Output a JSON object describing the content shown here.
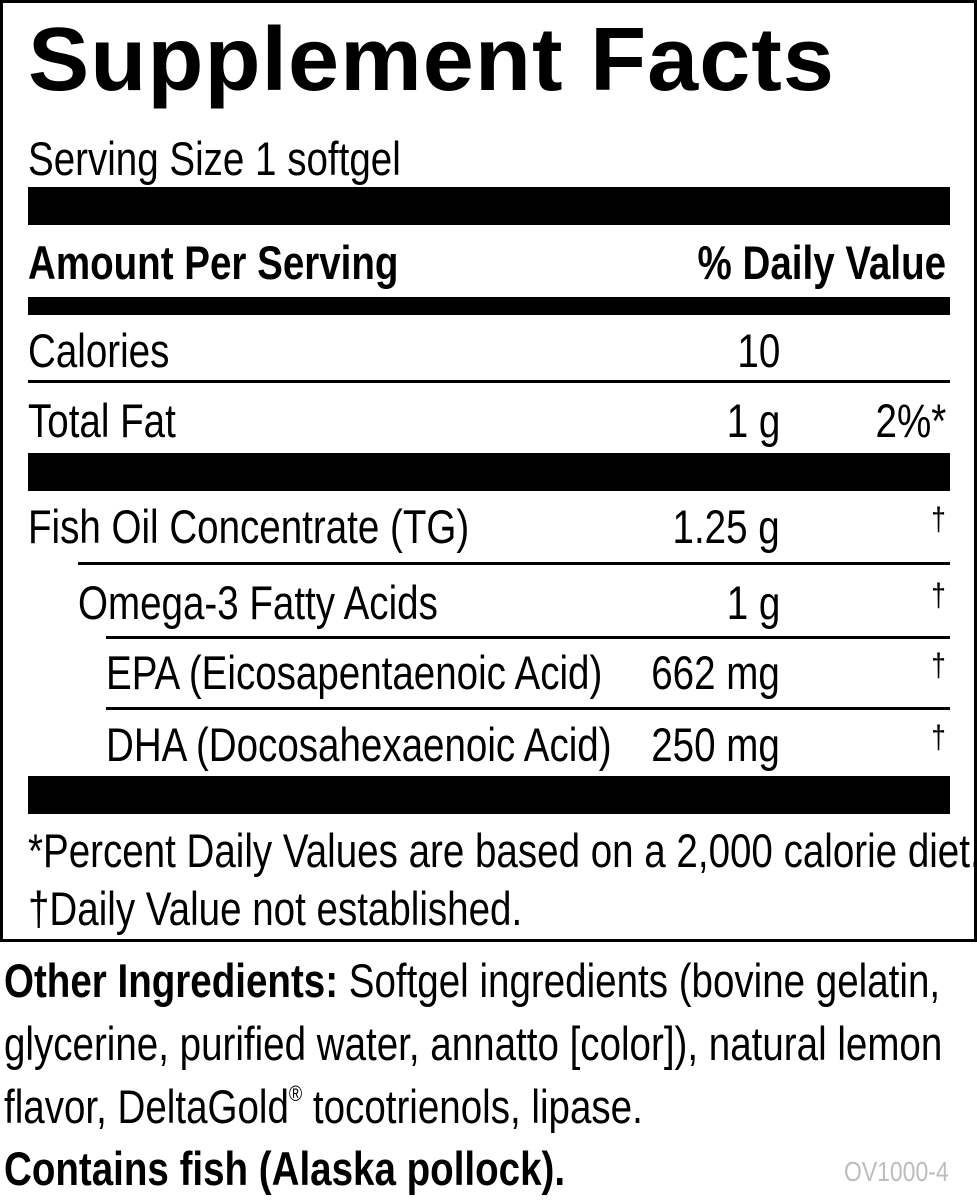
{
  "title": "Supplement Facts",
  "serving_size": "Serving Size 1 softgel",
  "header": {
    "amount_per_serving": "Amount Per Serving",
    "daily_value": "% Daily Value"
  },
  "rows": [
    {
      "name": "Calories",
      "amount": "10",
      "dv": ""
    },
    {
      "name": "Total Fat",
      "amount": "1 g",
      "dv": "2%*"
    },
    {
      "name": "Fish Oil Concentrate (TG)",
      "amount": "1.25 g",
      "dv": "†"
    },
    {
      "name": "Omega-3 Fatty Acids",
      "amount": "1 g",
      "dv": "†"
    },
    {
      "name": "EPA (Eicosapentaenoic Acid)",
      "amount": "662 mg",
      "dv": "†"
    },
    {
      "name": "DHA (Docosahexaenoic Acid)",
      "amount": "250 mg",
      "dv": "†"
    }
  ],
  "footnotes": {
    "percent": "*Percent Daily Values are based on a 2,000 calorie diet.",
    "dagger": "†Daily Value not established."
  },
  "other_ingredients": {
    "label": "Other Ingredients:",
    "line1": " Softgel ingredients (bovine gelatin,",
    "line2": "glycerine, purified water, annatto [color]), natural lemon",
    "line3a": "flavor, DeltaGold",
    "registered": "®",
    "line3b": " tocotrienols, lipase."
  },
  "allergen": "Contains fish (Alaska pollock).",
  "product_code": "OV1000-4"
}
